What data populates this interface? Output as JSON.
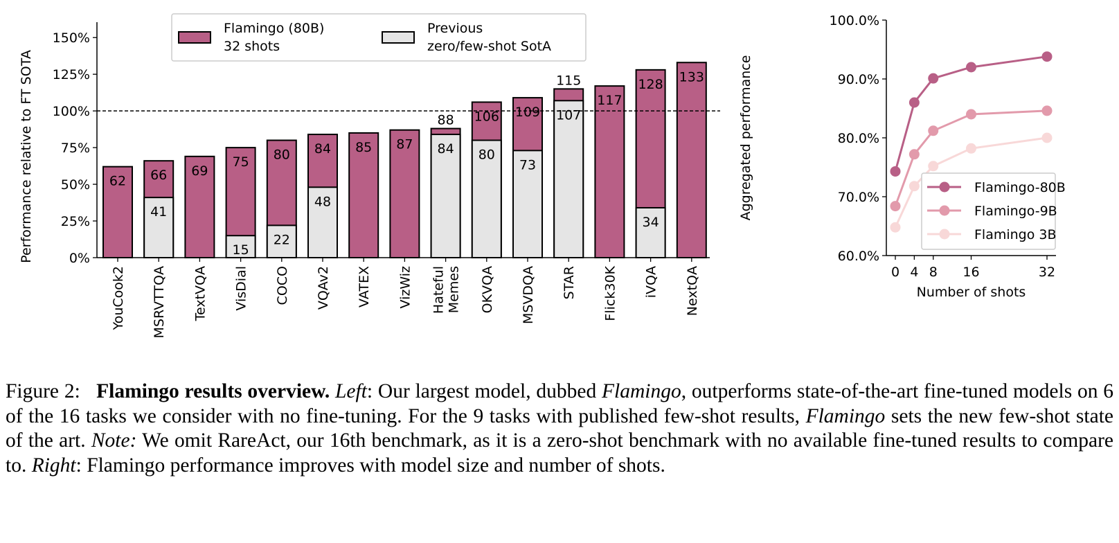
{
  "chart_data": [
    {
      "type": "bar",
      "title": "",
      "xlabel": "",
      "ylabel": "Performance relative to FT SOTA",
      "ylim": [
        0,
        155
      ],
      "yticks": [
        "0%",
        "25%",
        "50%",
        "75%",
        "100%",
        "125%",
        "150%"
      ],
      "ytick_values": [
        0,
        25,
        50,
        75,
        100,
        125,
        150
      ],
      "reference_line": 100,
      "categories": [
        "YouCook2",
        "MSRVTTQA",
        "TextVQA",
        "VisDial",
        "COCO",
        "VQAv2",
        "VATEX",
        "VizWiz",
        "Hateful\nMemes",
        "OKVQA",
        "MSVDQA",
        "STAR",
        "Flick30K",
        "iVQA",
        "NextQA"
      ],
      "series": [
        {
          "name": "Flamingo (80B)\n32 shots",
          "color": "#b85f86",
          "values": [
            62,
            66,
            69,
            75,
            80,
            84,
            85,
            87,
            88,
            106,
            109,
            115,
            117,
            128,
            133
          ]
        },
        {
          "name": "Previous\nzero/few-shot SotA",
          "color": "#e5e5e5",
          "values": [
            null,
            41,
            null,
            15,
            22,
            48,
            null,
            null,
            84,
            80,
            73,
            107,
            null,
            34,
            null
          ]
        }
      ],
      "legend": {
        "placement": "top-center",
        "entries": [
          "Flamingo (80B)",
          "32 shots",
          "Previous",
          "zero/few-shot SotA"
        ]
      }
    },
    {
      "type": "line",
      "title": "",
      "xlabel": "Number of shots",
      "ylabel": "Aggregated performance",
      "x": [
        0,
        4,
        8,
        16,
        32
      ],
      "xticks": [
        "0",
        "4",
        "8",
        "16",
        "32"
      ],
      "ylim": [
        60,
        100
      ],
      "yticks": [
        "60.0%",
        "70.0%",
        "80.0%",
        "90.0%",
        "100.0%"
      ],
      "ytick_values": [
        60,
        70,
        80,
        90,
        100
      ],
      "series": [
        {
          "name": "Flamingo-80B",
          "color": "#b85f86",
          "values": [
            74.3,
            86.0,
            90.1,
            92.0,
            93.8
          ]
        },
        {
          "name": "Flamingo-9B",
          "color": "#e29aab",
          "values": [
            68.4,
            77.2,
            81.2,
            84.0,
            84.6
          ]
        },
        {
          "name": "Flamingo 3B",
          "color": "#f8d8d8",
          "values": [
            64.8,
            71.8,
            75.2,
            78.2,
            80.0
          ]
        }
      ],
      "legend": {
        "placement": "lower-right"
      }
    }
  ],
  "caption": {
    "label": "Figure 2:",
    "bold": "Flamingo results overview.",
    "left_label": "Left",
    "t1": ": Our largest model, dubbed ",
    "flamingo1": "Flamingo",
    "t2": ", outperforms state-of-the-art fine-tuned models on 6 of the 16 tasks we consider with no fine-tuning. For the 9 tasks with published few-shot results, ",
    "flamingo2": "Flamingo",
    "t3": " sets the new few-shot state of the art. ",
    "note": "Note:",
    "t4": " We omit RareAct, our 16th benchmark, as it is a zero-shot benchmark with no available fine-tuned results to compare to. ",
    "right_label": "Right",
    "t5": ": Flamingo performance improves with model size and number of shots."
  }
}
